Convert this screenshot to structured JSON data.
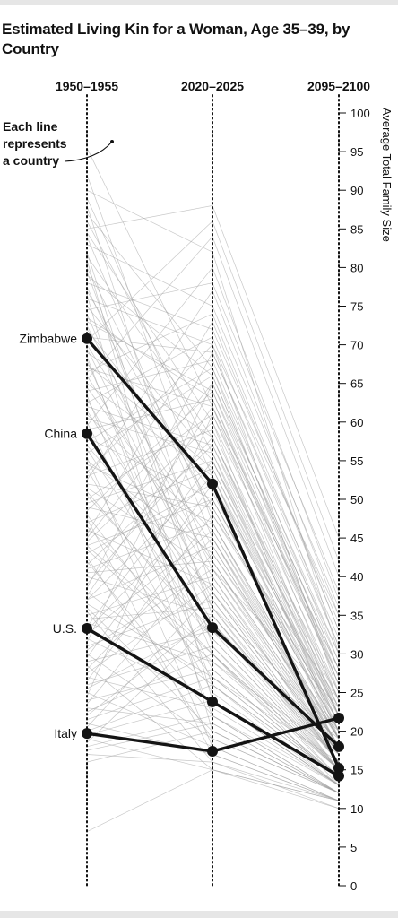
{
  "chart_data": {
    "type": "line",
    "title": "Estimated Living Kin for a Woman, Age 35–39, by Country",
    "x": [
      "1950–1955",
      "2020–2025",
      "2095–2100"
    ],
    "ylabel": "Average Total Family Size",
    "ylim": [
      0,
      100
    ],
    "yticks": [
      0,
      5,
      10,
      15,
      20,
      25,
      30,
      35,
      40,
      45,
      50,
      55,
      60,
      65,
      70,
      75,
      80,
      85,
      90,
      95,
      100
    ],
    "annotation": "Each line represents a country",
    "highlighted": [
      {
        "name": "Zimbabwe",
        "values": [
          70.8,
          52.0,
          15.2
        ]
      },
      {
        "name": "China",
        "values": [
          58.5,
          33.4,
          18.0
        ]
      },
      {
        "name": "U.S.",
        "values": [
          33.3,
          23.8,
          14.2
        ]
      },
      {
        "name": "Italy",
        "values": [
          19.7,
          17.4,
          21.7
        ]
      }
    ],
    "background_series": [
      [
        95.5,
        62.0,
        22.0
      ],
      [
        92.0,
        47.0,
        18.0
      ],
      [
        90.0,
        82.0,
        30.0
      ],
      [
        88.0,
        38.0,
        16.0
      ],
      [
        86.0,
        56.0,
        20.0
      ],
      [
        84.5,
        60.0,
        19.0
      ],
      [
        82.0,
        31.0,
        14.0
      ],
      [
        80.0,
        48.0,
        24.0
      ],
      [
        79.0,
        66.0,
        28.0
      ],
      [
        77.5,
        42.0,
        17.0
      ],
      [
        76.0,
        70.0,
        25.0
      ],
      [
        75.0,
        55.0,
        21.0
      ],
      [
        74.0,
        36.0,
        15.0
      ],
      [
        73.0,
        64.0,
        26.0
      ],
      [
        72.0,
        51.0,
        19.0
      ],
      [
        71.0,
        69.0,
        32.0
      ],
      [
        70.0,
        44.0,
        18.0
      ],
      [
        69.0,
        58.0,
        23.0
      ],
      [
        68.0,
        30.0,
        13.0
      ],
      [
        67.0,
        62.0,
        27.0
      ],
      [
        66.0,
        40.0,
        16.0
      ],
      [
        65.0,
        53.0,
        20.0
      ],
      [
        64.0,
        68.0,
        29.0
      ],
      [
        63.0,
        34.0,
        15.0
      ],
      [
        62.0,
        57.0,
        22.0
      ],
      [
        61.0,
        46.0,
        18.0
      ],
      [
        60.0,
        28.0,
        14.0
      ],
      [
        59.0,
        63.0,
        26.0
      ],
      [
        58.0,
        50.0,
        21.0
      ],
      [
        57.0,
        38.0,
        16.0
      ],
      [
        56.0,
        66.0,
        28.0
      ],
      [
        55.0,
        43.0,
        19.0
      ],
      [
        54.0,
        25.0,
        13.0
      ],
      [
        53.0,
        59.0,
        24.0
      ],
      [
        52.0,
        49.0,
        20.0
      ],
      [
        51.0,
        32.0,
        15.0
      ],
      [
        50.0,
        61.0,
        25.0
      ],
      [
        49.0,
        45.0,
        18.0
      ],
      [
        48.0,
        27.0,
        14.0
      ],
      [
        47.0,
        54.0,
        22.0
      ],
      [
        46.0,
        39.0,
        17.0
      ],
      [
        45.0,
        65.0,
        27.0
      ],
      [
        44.0,
        30.0,
        15.0
      ],
      [
        43.0,
        52.0,
        21.0
      ],
      [
        42.0,
        22.0,
        12.0
      ],
      [
        41.0,
        47.0,
        19.0
      ],
      [
        40.0,
        35.0,
        16.0
      ],
      [
        39.0,
        58.0,
        24.0
      ],
      [
        38.0,
        26.0,
        14.0
      ],
      [
        37.0,
        44.0,
        18.0
      ],
      [
        36.0,
        20.0,
        12.0
      ],
      [
        35.0,
        40.0,
        17.0
      ],
      [
        34.0,
        29.0,
        15.0
      ],
      [
        33.0,
        50.0,
        21.0
      ],
      [
        32.0,
        24.0,
        13.0
      ],
      [
        31.0,
        37.0,
        16.0
      ],
      [
        30.0,
        19.0,
        12.0
      ],
      [
        29.0,
        33.0,
        15.0
      ],
      [
        28.0,
        45.0,
        19.0
      ],
      [
        27.0,
        23.0,
        13.0
      ],
      [
        26.0,
        31.0,
        15.0
      ],
      [
        25.0,
        18.0,
        11.0
      ],
      [
        24.0,
        28.0,
        14.0
      ],
      [
        23.0,
        21.0,
        12.0
      ],
      [
        22.0,
        35.0,
        16.0
      ],
      [
        21.0,
        17.0,
        11.0
      ],
      [
        20.0,
        26.0,
        14.0
      ],
      [
        19.0,
        15.0,
        11.0
      ],
      [
        18.0,
        22.0,
        13.0
      ],
      [
        17.0,
        16.0,
        10.0
      ],
      [
        16.0,
        20.0,
        12.0
      ],
      [
        7.0,
        15.0,
        11.0
      ],
      [
        85.0,
        88.0,
        45.0
      ],
      [
        83.0,
        75.0,
        36.0
      ],
      [
        78.0,
        72.0,
        34.0
      ],
      [
        74.5,
        78.0,
        38.0
      ],
      [
        70.5,
        86.0,
        42.0
      ],
      [
        66.5,
        74.0,
        33.0
      ],
      [
        62.5,
        71.0,
        31.0
      ],
      [
        57.5,
        67.0,
        30.0
      ],
      [
        53.5,
        70.0,
        35.0
      ],
      [
        48.5,
        64.0,
        29.0
      ],
      [
        44.5,
        60.0,
        27.0
      ],
      [
        41.5,
        57.0,
        25.0
      ],
      [
        37.5,
        62.0,
        28.0
      ],
      [
        33.5,
        55.0,
        24.0
      ],
      [
        29.5,
        52.0,
        23.0
      ],
      [
        26.5,
        48.0,
        22.0
      ],
      [
        23.5,
        43.0,
        20.0
      ],
      [
        20.5,
        38.0,
        18.0
      ],
      [
        18.5,
        34.0,
        17.0
      ],
      [
        81.0,
        24.0,
        13.0
      ],
      [
        76.5,
        20.0,
        12.0
      ],
      [
        68.5,
        26.0,
        13.0
      ],
      [
        63.5,
        22.0,
        12.0
      ],
      [
        55.5,
        18.0,
        11.0
      ],
      [
        47.5,
        17.0,
        11.0
      ],
      [
        42.5,
        19.0,
        12.0
      ],
      [
        35.5,
        16.0,
        11.0
      ],
      [
        28.5,
        15.0,
        10.0
      ],
      [
        65.5,
        84.0,
        40.0
      ],
      [
        59.5,
        80.0,
        37.0
      ],
      [
        52.5,
        77.0,
        35.0
      ],
      [
        45.5,
        73.0,
        33.0
      ],
      [
        38.5,
        69.0,
        31.0
      ],
      [
        31.5,
        65.0,
        30.0
      ],
      [
        24.5,
        61.0,
        28.0
      ],
      [
        72.5,
        41.0,
        23.0
      ],
      [
        61.5,
        36.0,
        20.0
      ],
      [
        50.5,
        33.0,
        19.0
      ],
      [
        43.5,
        29.0,
        17.0
      ],
      [
        36.5,
        27.0,
        16.0
      ],
      [
        89.0,
        53.0,
        19.0
      ],
      [
        87.0,
        67.0,
        26.0
      ],
      [
        84.0,
        45.0,
        17.0
      ],
      [
        81.5,
        58.0,
        22.0
      ],
      [
        79.5,
        35.0,
        15.0
      ],
      [
        77.0,
        49.0,
        20.0
      ],
      [
        73.5,
        63.0,
        24.0
      ],
      [
        69.5,
        37.0,
        16.0
      ],
      [
        67.5,
        54.0,
        21.0
      ],
      [
        64.5,
        42.0,
        18.0
      ],
      [
        60.5,
        56.0,
        23.0
      ],
      [
        56.5,
        32.0,
        15.0
      ],
      [
        54.5,
        47.0,
        19.0
      ],
      [
        51.5,
        41.0,
        17.0
      ],
      [
        49.5,
        55.0,
        22.0
      ],
      [
        46.5,
        30.0,
        14.0
      ],
      [
        44.0,
        50.0,
        20.0
      ],
      [
        40.5,
        42.0,
        18.0
      ],
      [
        37.0,
        53.0,
        22.0
      ],
      [
        34.5,
        36.0,
        16.0
      ],
      [
        32.5,
        46.0,
        19.0
      ],
      [
        30.5,
        41.0,
        18.0
      ],
      [
        27.5,
        39.0,
        17.0
      ],
      [
        25.5,
        34.0,
        16.0
      ],
      [
        22.5,
        30.0,
        15.0
      ],
      [
        21.5,
        27.0,
        14.0
      ],
      [
        19.5,
        24.0,
        13.0
      ],
      [
        17.5,
        21.0,
        12.0
      ]
    ]
  }
}
